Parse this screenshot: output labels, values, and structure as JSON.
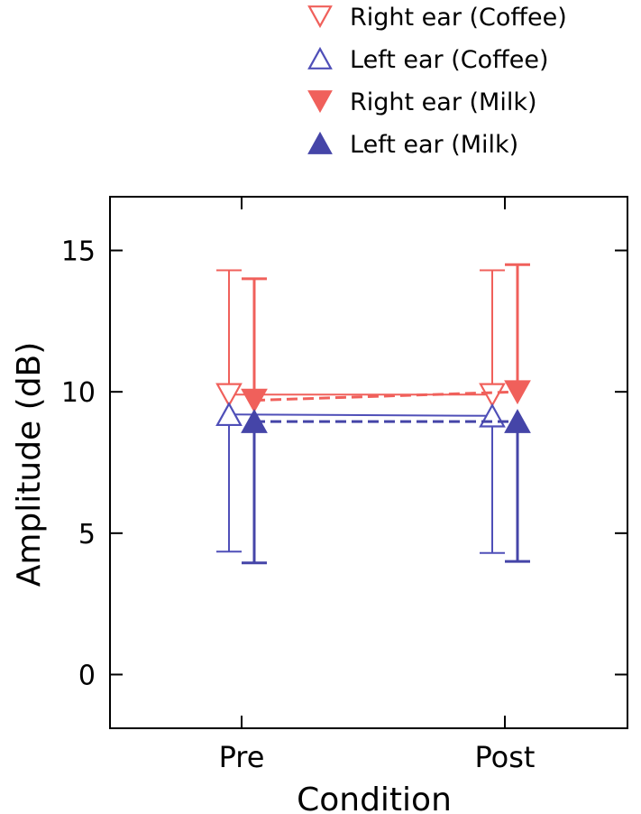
{
  "chart_data": {
    "type": "line",
    "title": "",
    "xlabel": "Condition",
    "ylabel": "Amplitude (dB)",
    "categories": [
      "Pre",
      "Post"
    ],
    "ylim": [
      -1.9,
      16.9
    ],
    "yticks": [
      0,
      5,
      10,
      15
    ],
    "grid": false,
    "legend_position": "top-right",
    "series": [
      {
        "name": "Right ear (Coffee)",
        "marker": "triangle-down",
        "filled": false,
        "line": "solid",
        "color": "#f0605b",
        "values": [
          9.9,
          9.9
        ],
        "upper": [
          14.3,
          14.3
        ],
        "lower": [
          null,
          null
        ]
      },
      {
        "name": "Left ear (Coffee)",
        "marker": "triangle-up",
        "filled": false,
        "line": "solid",
        "color": "#4f4fb8",
        "values": [
          9.2,
          9.15
        ],
        "upper": [
          null,
          null
        ],
        "lower": [
          4.35,
          4.3
        ]
      },
      {
        "name": "Right ear (Milk)",
        "marker": "triangle-down",
        "filled": true,
        "line": "dashed",
        "color": "#f0605b",
        "values": [
          9.7,
          10.0
        ],
        "upper": [
          14.0,
          14.5
        ],
        "lower": [
          null,
          null
        ]
      },
      {
        "name": "Left ear (Milk)",
        "marker": "triangle-up",
        "filled": true,
        "line": "dashed",
        "color": "#4545a8",
        "values": [
          8.95,
          8.95
        ],
        "upper": [
          null,
          null
        ],
        "lower": [
          3.95,
          4.0
        ]
      }
    ]
  }
}
